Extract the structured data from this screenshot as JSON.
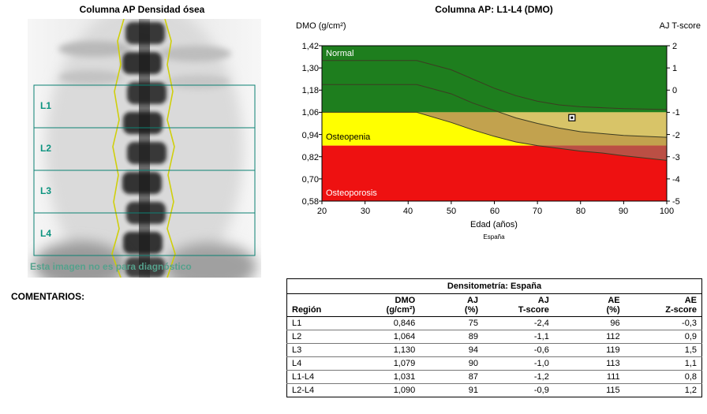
{
  "left_panel": {
    "title": "Columna AP Densidad ósea",
    "region_labels": [
      "L1",
      "L2",
      "L3",
      "L4"
    ],
    "disclaimer": "Esta imagen no es para diagnóstico",
    "comments_label": "COMENTARIOS:",
    "annotation_color": "#0c8173"
  },
  "chart": {
    "title": "Columna AP: L1-L4 (DMO)",
    "y_left_axis": "DMO (g/cm²)",
    "y_right_axis": "AJ T-score",
    "x_axis_label": "Edad (años)",
    "reference_source": "España",
    "y_left_ticks": [
      "1,42",
      "1,30",
      "1,18",
      "1,06",
      "0,94",
      "0,82",
      "0,70",
      "0,58"
    ],
    "y_right_ticks": [
      "2",
      "1",
      "0",
      "-1",
      "-2",
      "-3",
      "-4",
      "-5"
    ],
    "x_ticks": [
      "20",
      "30",
      "40",
      "50",
      "60",
      "70",
      "80",
      "90",
      "100"
    ],
    "zone_labels": {
      "normal": "Normal",
      "osteopenia": "Osteopenia",
      "osteoporosis": "Osteoporosis"
    },
    "colors": {
      "normal": "#1e7e1e",
      "osteopenia": "#ffff00",
      "osteoporosis": "#ee1111",
      "band_upper": "#d8c468",
      "band_lower": "#c2a24e",
      "band_red": "#bb4f44",
      "curve_line": "#3c3c22"
    }
  },
  "chart_data": {
    "type": "area",
    "title": "Columna AP: L1-L4 (DMO)",
    "xlabel": "Edad (años)",
    "ylabel_left": "DMO (g/cm²)",
    "ylabel_right": "AJ T-score",
    "xlim": [
      20,
      100
    ],
    "ylim_dmo": [
      0.58,
      1.42
    ],
    "ylim_tscore": [
      -5,
      2
    ],
    "thresholds": {
      "normal_min_dmo": 1.06,
      "normal_min_tscore": -1,
      "osteoporosis_max_dmo": 0.88,
      "osteoporosis_max_tscore": -2.5
    },
    "zones": [
      {
        "name": "Normal",
        "tscore_range": [
          -1,
          2
        ]
      },
      {
        "name": "Osteopenia",
        "tscore_range": [
          -2.5,
          -1
        ]
      },
      {
        "name": "Osteoporosis",
        "tscore_range": [
          -5,
          -2.5
        ]
      }
    ],
    "reference_band": {
      "ages": [
        20,
        42,
        50,
        55,
        60,
        65,
        70,
        75,
        80,
        85,
        90,
        100
      ],
      "upper": [
        1.34,
        1.34,
        1.29,
        1.24,
        1.19,
        1.15,
        1.12,
        1.1,
        1.09,
        1.085,
        1.08,
        1.075
      ],
      "mean": [
        1.21,
        1.21,
        1.16,
        1.11,
        1.07,
        1.03,
        1.0,
        0.975,
        0.955,
        0.945,
        0.935,
        0.925
      ],
      "lower": [
        1.06,
        1.06,
        1.005,
        0.965,
        0.93,
        0.9,
        0.88,
        0.865,
        0.85,
        0.84,
        0.825,
        0.8
      ]
    },
    "patient_point": {
      "age": 78,
      "dmo": 1.031
    }
  },
  "table": {
    "title": "Densitometría: España",
    "header_top": [
      "",
      "DMO",
      "AJ",
      "AJ",
      "AE",
      "AE"
    ],
    "header_bottom": [
      "Región",
      "(g/cm²)",
      "(%)",
      "T-score",
      "(%)",
      "Z-score"
    ],
    "rows": [
      [
        "L1",
        "0,846",
        "75",
        "-2,4",
        "96",
        "-0,3"
      ],
      [
        "L2",
        "1,064",
        "89",
        "-1,1",
        "112",
        "0,9"
      ],
      [
        "L3",
        "1,130",
        "94",
        "-0,6",
        "119",
        "1,5"
      ],
      [
        "L4",
        "1,079",
        "90",
        "-1,0",
        "113",
        "1,1"
      ],
      [
        "L1-L4",
        "1,031",
        "87",
        "-1,2",
        "111",
        "0,8"
      ],
      [
        "L2-L4",
        "1,090",
        "91",
        "-0,9",
        "115",
        "1,2"
      ]
    ]
  }
}
